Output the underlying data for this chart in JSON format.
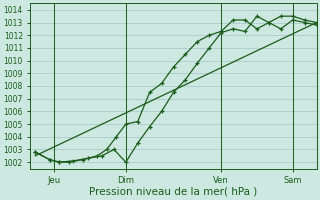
{
  "xlabel": "Pression niveau de la mer( hPa )",
  "bg_color": "#cce8e0",
  "grid_color": "#aacccc",
  "line_color": "#1a5c1a",
  "ylim": [
    1001.5,
    1014.5
  ],
  "yticks": [
    1002,
    1003,
    1004,
    1005,
    1006,
    1007,
    1008,
    1009,
    1010,
    1011,
    1012,
    1013,
    1014
  ],
  "xlim": [
    0,
    12
  ],
  "xtick_positions": [
    1.0,
    4.0,
    8.0,
    11.0
  ],
  "xtick_labels": [
    "Jeu",
    "Dim",
    "Ven",
    "Sam"
  ],
  "vline_positions": [
    1.0,
    4.0,
    8.0,
    11.0
  ],
  "series1_x": [
    0.2,
    0.8,
    1.2,
    1.8,
    2.4,
    3.0,
    3.5,
    4.0,
    4.5,
    5.0,
    5.5,
    6.0,
    6.5,
    7.0,
    7.5,
    8.0,
    8.5,
    9.0,
    9.5,
    10.0,
    10.5,
    11.0,
    11.5,
    12.0
  ],
  "series1_y": [
    1002.8,
    1002.2,
    1002.0,
    1002.1,
    1002.3,
    1002.5,
    1003.0,
    1002.0,
    1003.5,
    1004.8,
    1006.0,
    1007.5,
    1008.5,
    1009.8,
    1011.0,
    1012.2,
    1012.5,
    1012.3,
    1013.5,
    1013.0,
    1013.5,
    1013.5,
    1013.2,
    1013.0
  ],
  "series2_x": [
    0.2,
    0.8,
    1.2,
    1.6,
    2.2,
    2.8,
    3.2,
    3.6,
    4.0,
    4.5,
    5.0,
    5.5,
    6.0,
    6.5,
    7.0,
    7.5,
    8.0,
    8.5,
    9.0,
    9.5,
    10.0,
    10.5,
    11.0,
    11.5,
    12.0
  ],
  "series2_y": [
    1002.8,
    1002.2,
    1002.0,
    1002.0,
    1002.2,
    1002.5,
    1003.0,
    1004.0,
    1005.0,
    1005.2,
    1007.5,
    1008.2,
    1009.5,
    1010.5,
    1011.5,
    1012.0,
    1012.3,
    1013.2,
    1013.2,
    1012.5,
    1013.0,
    1012.5,
    1013.2,
    1013.0,
    1012.8
  ],
  "series3_x": [
    0.2,
    12.0
  ],
  "series3_y": [
    1002.5,
    1013.0
  ],
  "tick_fontsize": 5.5,
  "xlabel_fontsize": 7.5
}
